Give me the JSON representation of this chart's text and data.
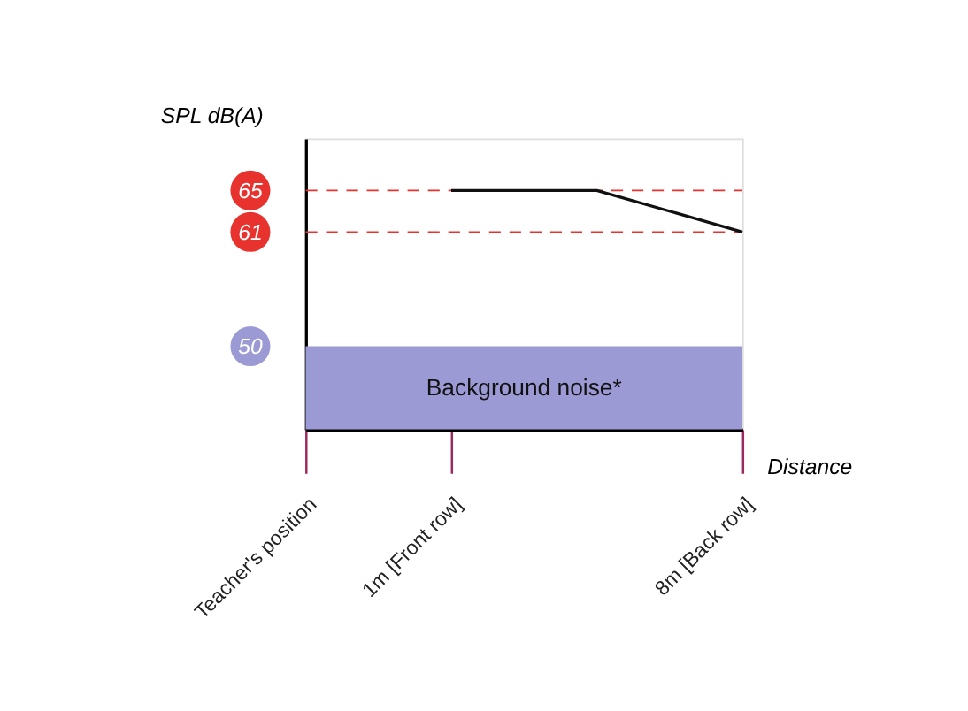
{
  "chart_data": {
    "type": "line",
    "xlabel": "Distance",
    "ylabel": "SPL dB(A)",
    "categories": [
      "Teacher's position",
      "1m [Front row]",
      null,
      "8m [Back row]"
    ],
    "series": [
      {
        "color": "#111111",
        "values": [
          null,
          65,
          65,
          61
        ]
      }
    ],
    "ylim": [
      42,
      70
    ],
    "yticks": [
      50,
      61,
      65
    ],
    "ref_lines": [
      {
        "axis": "y",
        "value": 65,
        "color": "#e8322e",
        "line_style": "dashed"
      },
      {
        "axis": "y",
        "value": 61,
        "color": "#e8322e",
        "line_style": "dashed"
      }
    ],
    "bands": [
      {
        "axis": "y",
        "from": 42,
        "to": 50,
        "label": "Background noise*",
        "color": "#9c9ad4"
      }
    ],
    "grid": false,
    "marker": "none",
    "line_style": "solid"
  }
}
